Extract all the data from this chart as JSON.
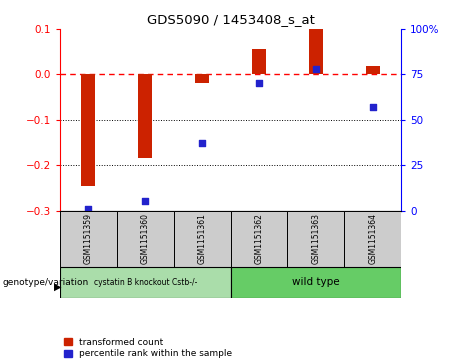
{
  "title": "GDS5090 / 1453408_s_at",
  "samples": [
    "GSM1151359",
    "GSM1151360",
    "GSM1151361",
    "GSM1151362",
    "GSM1151363",
    "GSM1151364"
  ],
  "red_values": [
    -0.245,
    -0.185,
    -0.018,
    0.055,
    0.1,
    0.018
  ],
  "blue_values_pct": [
    1.0,
    5.0,
    37.0,
    70.0,
    78.0,
    57.0
  ],
  "ylim": [
    -0.3,
    0.1
  ],
  "y2lim": [
    0,
    100
  ],
  "yticks": [
    -0.3,
    -0.2,
    -0.1,
    0.0,
    0.1
  ],
  "y2ticks": [
    0,
    25,
    50,
    75,
    100
  ],
  "group1_label": "cystatin B knockout Cstb-/-",
  "group2_label": "wild type",
  "group1_color": "#aaddaa",
  "group2_color": "#66cc66",
  "bar_color": "#cc2200",
  "dot_color": "#2222cc",
  "legend_red": "transformed count",
  "legend_blue": "percentile rank within the sample",
  "genotype_label": "genotype/variation",
  "background_color": "#ffffff",
  "sample_box_color": "#cccccc",
  "bar_width": 0.25,
  "group1_samples": 3,
  "group2_samples": 3
}
